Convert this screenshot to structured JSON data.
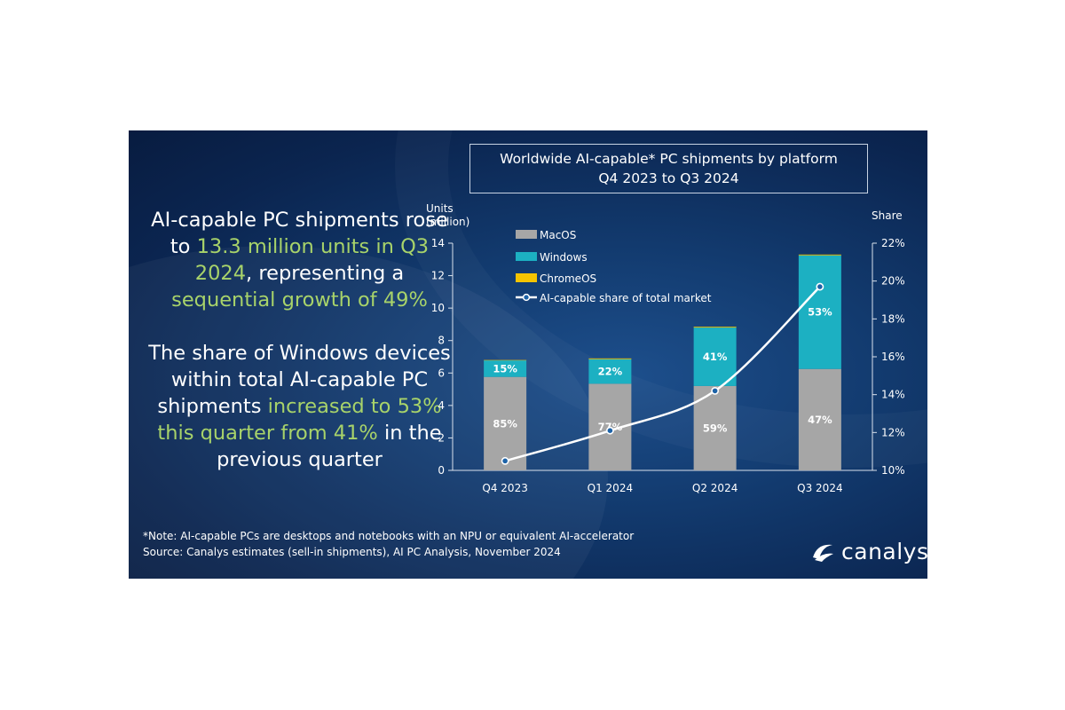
{
  "headline": {
    "p1_a": "AI-capable PC shipments rose to ",
    "p1_hl1": "13.3 million units in Q3 2024",
    "p1_b": ", representing a ",
    "p1_hl2": "sequential growth of 49%",
    "p2_a": "The share of Windows devices within total AI-capable PC shipments ",
    "p2_hl": "increased to 53% this quarter from 41%",
    "p2_b": " in the previous quarter"
  },
  "colors": {
    "macos": "#a6a6a6",
    "windows": "#1cb0c2",
    "chromeos": "#f5c400",
    "line": "#ffffff",
    "highlight": "#a8d36a"
  },
  "chart_data": {
    "type": "bar",
    "stacked": true,
    "title_line1": "Worldwide AI-capable* PC shipments by platform",
    "title_line2": "Q4 2023 to Q3 2024",
    "ylabel_line1": "Units",
    "ylabel_line2": "(million)",
    "y2label": "Share",
    "categories": [
      "Q4 2023",
      "Q1 2024",
      "Q2 2024",
      "Q3 2024"
    ],
    "ylim": [
      0,
      14
    ],
    "yticks": [
      0,
      2,
      4,
      6,
      8,
      10,
      12,
      14
    ],
    "y2lim": [
      10,
      22
    ],
    "y2ticks": [
      "10%",
      "12%",
      "14%",
      "16%",
      "18%",
      "20%",
      "22%"
    ],
    "y2tick_values": [
      10,
      12,
      14,
      16,
      18,
      20,
      22
    ],
    "series": [
      {
        "name": "MacOS",
        "values": [
          5.76,
          5.34,
          5.2,
          6.25
        ],
        "labels": [
          "85%",
          "77%",
          "59%",
          "47%"
        ]
      },
      {
        "name": "Windows",
        "values": [
          1.02,
          1.51,
          3.6,
          7.0
        ],
        "labels": [
          "15%",
          "22%",
          "41%",
          "53%"
        ]
      },
      {
        "name": "ChromeOS",
        "values": [
          0.02,
          0.05,
          0.05,
          0.05
        ],
        "labels": [
          "",
          "",
          "",
          ""
        ]
      }
    ],
    "line_series": {
      "name": "AI-capable share of total market",
      "values": [
        10.5,
        12.1,
        14.2,
        19.7
      ]
    },
    "legend_position": "top-left inside plot"
  },
  "notes": {
    "note1": "*Note: AI-capable PCs are desktops and notebooks with an NPU or equivalent AI-accelerator",
    "note2": "Source: Canalys estimates (sell-in shipments), AI PC Analysis, November 2024"
  },
  "logo": {
    "text": "canalys",
    "icon": "canalys-swoosh-icon"
  }
}
